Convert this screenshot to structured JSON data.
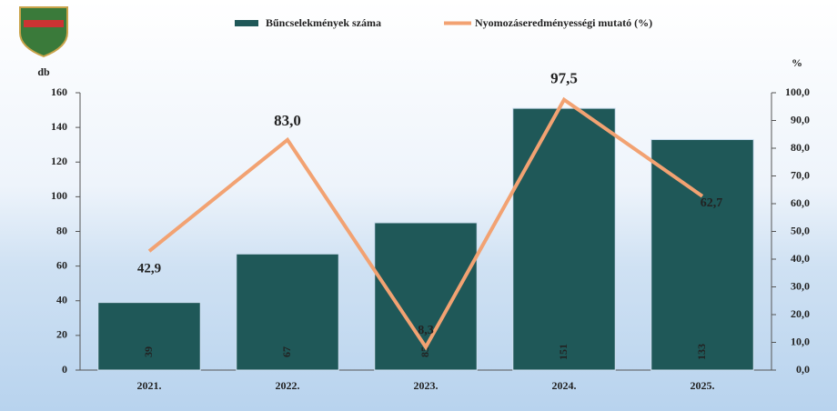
{
  "chart_data": {
    "type": "bar-line",
    "categories": [
      "2021.",
      "2022.",
      "2023.",
      "2024.",
      "2025."
    ],
    "series": [
      {
        "name": "Bűncselekmények száma",
        "color": "#1f5858",
        "type": "bar",
        "axis": "y",
        "values": [
          39,
          67,
          85,
          151,
          133
        ]
      },
      {
        "name": "Nyomozáseredményességi mutató (%)",
        "color": "#f2a272",
        "type": "line",
        "axis": "y2",
        "values": [
          42.9,
          83.0,
          8.3,
          97.5,
          62.7
        ],
        "value_labels": [
          "42,9",
          "83,0",
          "8,3",
          "97,5",
          "62,7"
        ]
      }
    ],
    "ylabel": "db",
    "y2label": "%",
    "ylim": [
      0,
      160
    ],
    "yticks": [
      0,
      20,
      40,
      60,
      80,
      100,
      120,
      140,
      160
    ],
    "y2lim": [
      0,
      100
    ],
    "y2ticks": [
      {
        "value": 0,
        "label": "0,0"
      },
      {
        "value": 10,
        "label": "10,0"
      },
      {
        "value": 20,
        "label": "20,0"
      },
      {
        "value": 30,
        "label": "30,0"
      },
      {
        "value": 40,
        "label": "40,0"
      },
      {
        "value": 50,
        "label": "50,0"
      },
      {
        "value": 60,
        "label": "60,0"
      },
      {
        "value": 70,
        "label": "70,0"
      },
      {
        "value": 80,
        "label": "80,0"
      },
      {
        "value": 90,
        "label": "90,0"
      },
      {
        "value": 100,
        "label": "100,0"
      }
    ],
    "legend": "top"
  }
}
